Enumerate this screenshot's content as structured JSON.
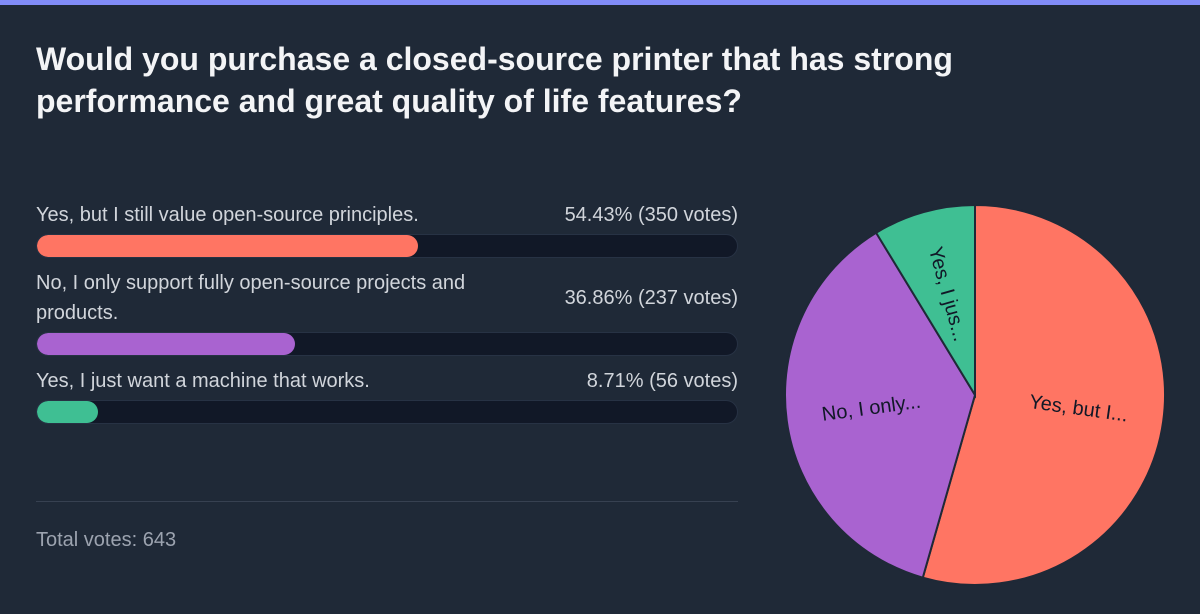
{
  "poll": {
    "question": "Would you purchase a closed-source printer that has strong performance and great quality of life features?",
    "total_label": "Total votes: 643"
  },
  "chart_data": {
    "type": "bar",
    "title": "Would you purchase a closed-source printer that has strong performance and great quality of life features?",
    "categories": [
      "Yes, but I still value open-source principles.",
      "No, I only support fully open-source projects and products.",
      "Yes, I just want a machine that works."
    ],
    "values": [
      54.43,
      36.86,
      8.71
    ],
    "votes": [
      350,
      237,
      56
    ],
    "results": [
      "54.43% (350 votes)",
      "36.86% (237 votes)",
      "8.71% (56 votes)"
    ],
    "pie_labels": [
      "Yes, but I...",
      "No, I only...",
      "Yes, I jus..."
    ],
    "colors": [
      "#ff7563",
      "#a963d0",
      "#3fbf93"
    ],
    "total_votes": 643,
    "ylim": [
      0,
      100
    ]
  }
}
